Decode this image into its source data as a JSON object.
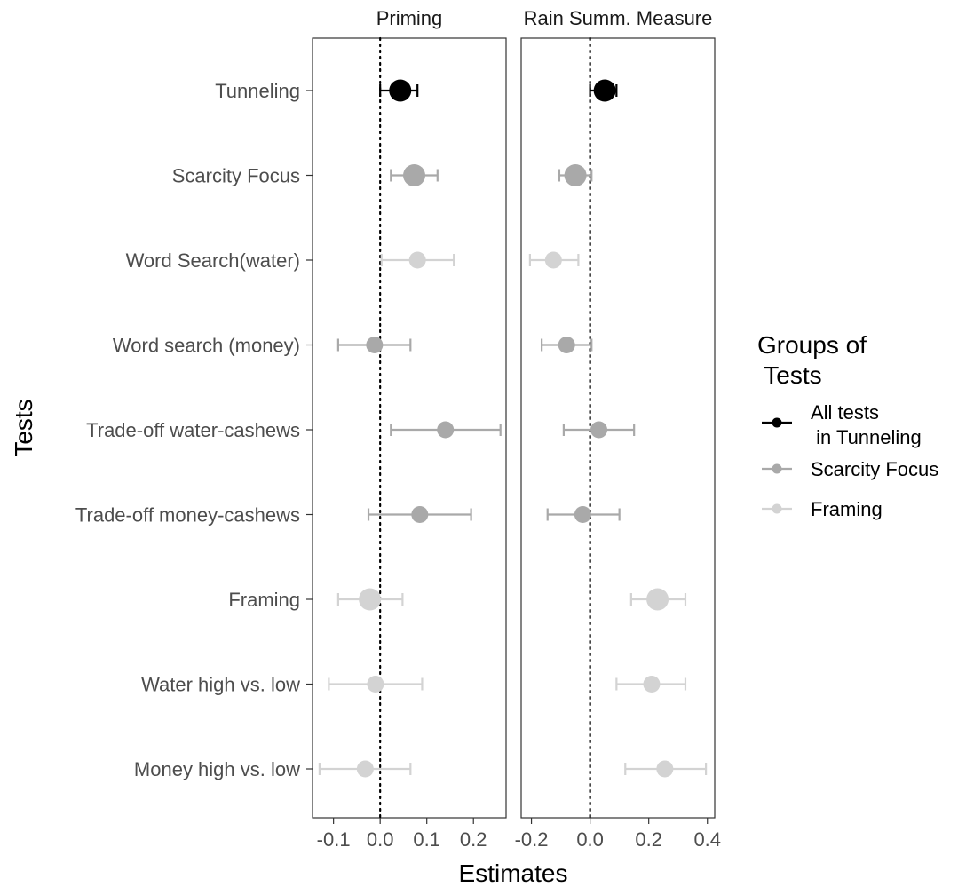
{
  "chart_data": {
    "type": "scatter",
    "subtype": "dot-and-whisker (point estimates with confidence intervals), faceted",
    "xlabel": "Estimates",
    "ylabel": "Tests",
    "categories": [
      "Tunneling",
      "Scarcity Focus",
      "Word Search(water)",
      "Word search (money)",
      "Trade-off water-cashews",
      "Trade-off money-cashews",
      "Framing",
      "Water high vs. low",
      "Money high vs. low"
    ],
    "groups": [
      "tunneling",
      "scarcity",
      "framing",
      "scarcity",
      "scarcity",
      "scarcity",
      "framing",
      "framing",
      "framing"
    ],
    "legend": {
      "title_line1": "Groups of",
      "title_line2": " Tests",
      "position": "right",
      "items": [
        {
          "key": "tunneling",
          "line1": "All tests",
          "line2": " in Tunneling",
          "color": "#000000"
        },
        {
          "key": "scarcity",
          "line1": "Scarcity Focus",
          "line2": "",
          "color": "#a9a9a9"
        },
        {
          "key": "framing",
          "line1": "Framing",
          "line2": "",
          "color": "#d3d3d3"
        }
      ]
    },
    "facets": [
      {
        "title": "Priming",
        "xlim": [
          -0.145,
          0.27
        ],
        "xticks": [
          -0.1,
          0.0,
          0.1,
          0.2
        ],
        "xtick_labels": [
          "-0.1",
          "0.0",
          "0.1",
          "0.2"
        ],
        "reference_line": 0,
        "points": [
          {
            "est": 0.043,
            "lo": 0.0,
            "hi": 0.08,
            "large": true
          },
          {
            "est": 0.073,
            "lo": 0.023,
            "hi": 0.123,
            "large": true
          },
          {
            "est": 0.08,
            "lo": 0.003,
            "hi": 0.158,
            "large": false
          },
          {
            "est": -0.012,
            "lo": -0.09,
            "hi": 0.065,
            "large": false
          },
          {
            "est": 0.14,
            "lo": 0.023,
            "hi": 0.258,
            "large": false
          },
          {
            "est": 0.085,
            "lo": -0.025,
            "hi": 0.195,
            "large": false
          },
          {
            "est": -0.022,
            "lo": -0.09,
            "hi": 0.048,
            "large": true
          },
          {
            "est": -0.01,
            "lo": -0.11,
            "hi": 0.09,
            "large": false
          },
          {
            "est": -0.032,
            "lo": -0.13,
            "hi": 0.065,
            "large": false
          }
        ]
      },
      {
        "title": "Rain Summ. Measure",
        "xlim": [
          -0.235,
          0.425
        ],
        "xticks": [
          -0.2,
          0.0,
          0.2,
          0.4
        ],
        "xtick_labels": [
          "-0.2",
          "0.0",
          "0.2",
          "0.4"
        ],
        "reference_line": 0,
        "points": [
          {
            "est": 0.05,
            "lo": 0.0,
            "hi": 0.09,
            "large": true
          },
          {
            "est": -0.05,
            "lo": -0.105,
            "hi": 0.005,
            "large": true
          },
          {
            "est": -0.125,
            "lo": -0.205,
            "hi": -0.04,
            "large": false
          },
          {
            "est": -0.08,
            "lo": -0.165,
            "hi": 0.005,
            "large": false
          },
          {
            "est": 0.03,
            "lo": -0.09,
            "hi": 0.15,
            "large": false
          },
          {
            "est": -0.025,
            "lo": -0.145,
            "hi": 0.1,
            "large": false
          },
          {
            "est": 0.23,
            "lo": 0.14,
            "hi": 0.325,
            "large": true
          },
          {
            "est": 0.21,
            "lo": 0.09,
            "hi": 0.325,
            "large": false
          },
          {
            "est": 0.255,
            "lo": 0.12,
            "hi": 0.395,
            "large": false
          }
        ]
      }
    ]
  }
}
